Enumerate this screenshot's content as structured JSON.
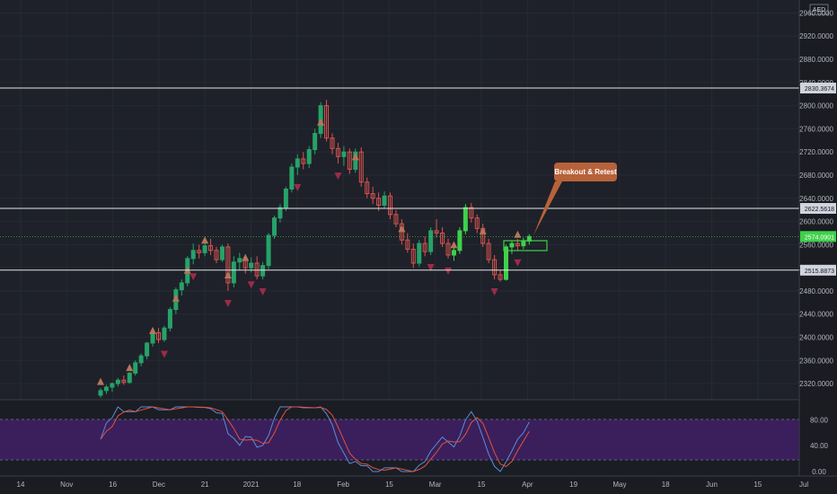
{
  "currency": "AED",
  "colors": {
    "up": "#26a269",
    "up_bright": "#3fd14a",
    "down": "#d9534f",
    "up_marker": "#b5765a",
    "down_marker": "#9c2b4a",
    "level_line": "#e6e6e6",
    "osc_band": "#3a1f5c",
    "osc_k": "#5b8cd6",
    "osc_d": "#e0533f",
    "callout": "#b8623a",
    "grid": "#262a33"
  },
  "price_axis": {
    "ticks": [
      "2960.0000",
      "2920.0000",
      "2880.0000",
      "2840.0000",
      "2800.0000",
      "2760.0000",
      "2720.0000",
      "2680.0000",
      "2640.0000",
      "2600.0000",
      "2560.0000",
      "2520.0000",
      "2480.0000",
      "2440.0000",
      "2400.0000",
      "2360.0000",
      "2320.0000"
    ]
  },
  "time_axis": {
    "labels": [
      "14",
      "Nov",
      "16",
      "Dec",
      "21",
      "2021",
      "18",
      "Feb",
      "15",
      "Mar",
      "15",
      "Apr",
      "19",
      "May",
      "18",
      "Jun",
      "15",
      "Jul"
    ]
  },
  "oscillator_axis": {
    "ticks": [
      "80.00",
      "40.00",
      "0.00"
    ]
  },
  "level_badges": {
    "resistance_top": "2830.3674",
    "resistance_mid": "2622.5618",
    "current_price": "2574.0901",
    "support": "2515.8873"
  },
  "annotation": {
    "callout_text": "Breakout & Retest"
  },
  "chart_data": {
    "type": "candlestick",
    "ylim": [
      2300,
      2970
    ],
    "levels": [
      2830.3674,
      2622.5618,
      2515.8873
    ],
    "current_price": 2574.0901,
    "candles": [
      [
        2300,
        2312,
        2296,
        2308
      ],
      [
        2308,
        2318,
        2302,
        2314
      ],
      [
        2314,
        2322,
        2306,
        2320
      ],
      [
        2320,
        2330,
        2315,
        2326
      ],
      [
        2326,
        2334,
        2318,
        2322
      ],
      [
        2322,
        2340,
        2320,
        2338
      ],
      [
        2338,
        2360,
        2334,
        2356
      ],
      [
        2356,
        2372,
        2350,
        2368
      ],
      [
        2368,
        2392,
        2362,
        2390
      ],
      [
        2390,
        2412,
        2384,
        2408
      ],
      [
        2408,
        2416,
        2390,
        2396
      ],
      [
        2396,
        2420,
        2392,
        2416
      ],
      [
        2416,
        2452,
        2410,
        2448
      ],
      [
        2448,
        2486,
        2440,
        2482
      ],
      [
        2482,
        2500,
        2472,
        2494
      ],
      [
        2494,
        2540,
        2488,
        2536
      ],
      [
        2536,
        2562,
        2526,
        2550
      ],
      [
        2550,
        2560,
        2536,
        2546
      ],
      [
        2546,
        2566,
        2540,
        2558
      ],
      [
        2558,
        2570,
        2542,
        2550
      ],
      [
        2550,
        2556,
        2528,
        2534
      ],
      [
        2534,
        2560,
        2530,
        2556
      ],
      [
        2556,
        2562,
        2480,
        2494
      ],
      [
        2494,
        2540,
        2486,
        2530
      ],
      [
        2530,
        2546,
        2516,
        2536
      ],
      [
        2536,
        2540,
        2510,
        2520
      ],
      [
        2520,
        2538,
        2512,
        2528
      ],
      [
        2528,
        2540,
        2500,
        2506
      ],
      [
        2506,
        2530,
        2500,
        2524
      ],
      [
        2524,
        2580,
        2518,
        2576
      ],
      [
        2576,
        2610,
        2570,
        2606
      ],
      [
        2606,
        2630,
        2598,
        2624
      ],
      [
        2624,
        2660,
        2618,
        2656
      ],
      [
        2656,
        2700,
        2650,
        2694
      ],
      [
        2694,
        2716,
        2680,
        2708
      ],
      [
        2708,
        2720,
        2690,
        2700
      ],
      [
        2700,
        2730,
        2692,
        2724
      ],
      [
        2724,
        2760,
        2716,
        2752
      ],
      [
        2752,
        2806,
        2744,
        2800
      ],
      [
        2800,
        2810,
        2738,
        2744
      ],
      [
        2744,
        2752,
        2716,
        2726
      ],
      [
        2726,
        2736,
        2700,
        2712
      ],
      [
        2712,
        2730,
        2696,
        2720
      ],
      [
        2720,
        2726,
        2682,
        2690
      ],
      [
        2690,
        2726,
        2684,
        2720
      ],
      [
        2720,
        2728,
        2660,
        2668
      ],
      [
        2668,
        2676,
        2640,
        2648
      ],
      [
        2648,
        2660,
        2630,
        2640
      ],
      [
        2640,
        2650,
        2618,
        2628
      ],
      [
        2628,
        2652,
        2622,
        2644
      ],
      [
        2644,
        2650,
        2604,
        2612
      ],
      [
        2612,
        2620,
        2590,
        2596
      ],
      [
        2596,
        2604,
        2560,
        2568
      ],
      [
        2568,
        2580,
        2546,
        2552
      ],
      [
        2552,
        2562,
        2520,
        2528
      ],
      [
        2528,
        2568,
        2522,
        2562
      ],
      [
        2562,
        2574,
        2540,
        2548
      ],
      [
        2548,
        2590,
        2542,
        2584
      ],
      [
        2584,
        2604,
        2572,
        2580
      ],
      [
        2580,
        2590,
        2556,
        2562
      ],
      [
        2562,
        2570,
        2536,
        2542
      ],
      [
        2542,
        2560,
        2532,
        2550
      ],
      [
        2550,
        2590,
        2544,
        2584
      ],
      [
        2584,
        2630,
        2578,
        2624
      ],
      [
        2624,
        2632,
        2598,
        2606
      ],
      [
        2606,
        2612,
        2580,
        2588
      ],
      [
        2588,
        2596,
        2556,
        2562
      ],
      [
        2562,
        2570,
        2528,
        2534
      ],
      [
        2534,
        2542,
        2500,
        2508
      ],
      [
        2508,
        2516,
        2496,
        2500
      ],
      [
        2500,
        2560,
        2498,
        2556
      ],
      [
        2556,
        2566,
        2544,
        2562
      ],
      [
        2562,
        2570,
        2550,
        2558
      ],
      [
        2558,
        2572,
        2552,
        2566
      ],
      [
        2566,
        2578,
        2560,
        2574
      ]
    ],
    "up_markers": [
      0,
      5,
      9,
      13,
      15,
      18,
      22,
      25,
      38,
      44,
      52,
      61,
      66,
      72
    ],
    "down_markers": [
      11,
      16,
      22,
      26,
      28,
      34,
      41,
      57,
      60,
      68,
      72
    ]
  }
}
